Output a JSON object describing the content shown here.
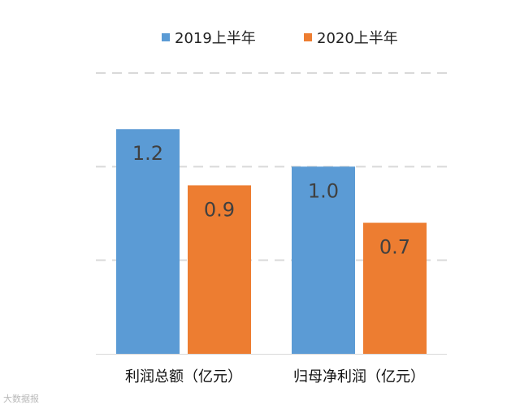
{
  "chart_data": {
    "type": "bar",
    "categories": [
      "利润总额（亿元）",
      "归母净利润（亿元）"
    ],
    "series": [
      {
        "name": "2019上半年",
        "color": "#5B9BD5",
        "values": [
          1.2,
          1.0
        ],
        "labels": [
          "1.2",
          "1.0"
        ]
      },
      {
        "name": "2020上半年",
        "color": "#ED7D31",
        "values": [
          0.9,
          0.7
        ],
        "labels": [
          "0.9",
          "0.7"
        ]
      }
    ],
    "ylim": [
      0,
      1.5
    ],
    "gridlines": [
      0.5,
      1.0,
      1.5
    ],
    "legend_position": "top-center",
    "title": "",
    "xlabel": "",
    "ylabel": ""
  },
  "watermark": "大数据报"
}
